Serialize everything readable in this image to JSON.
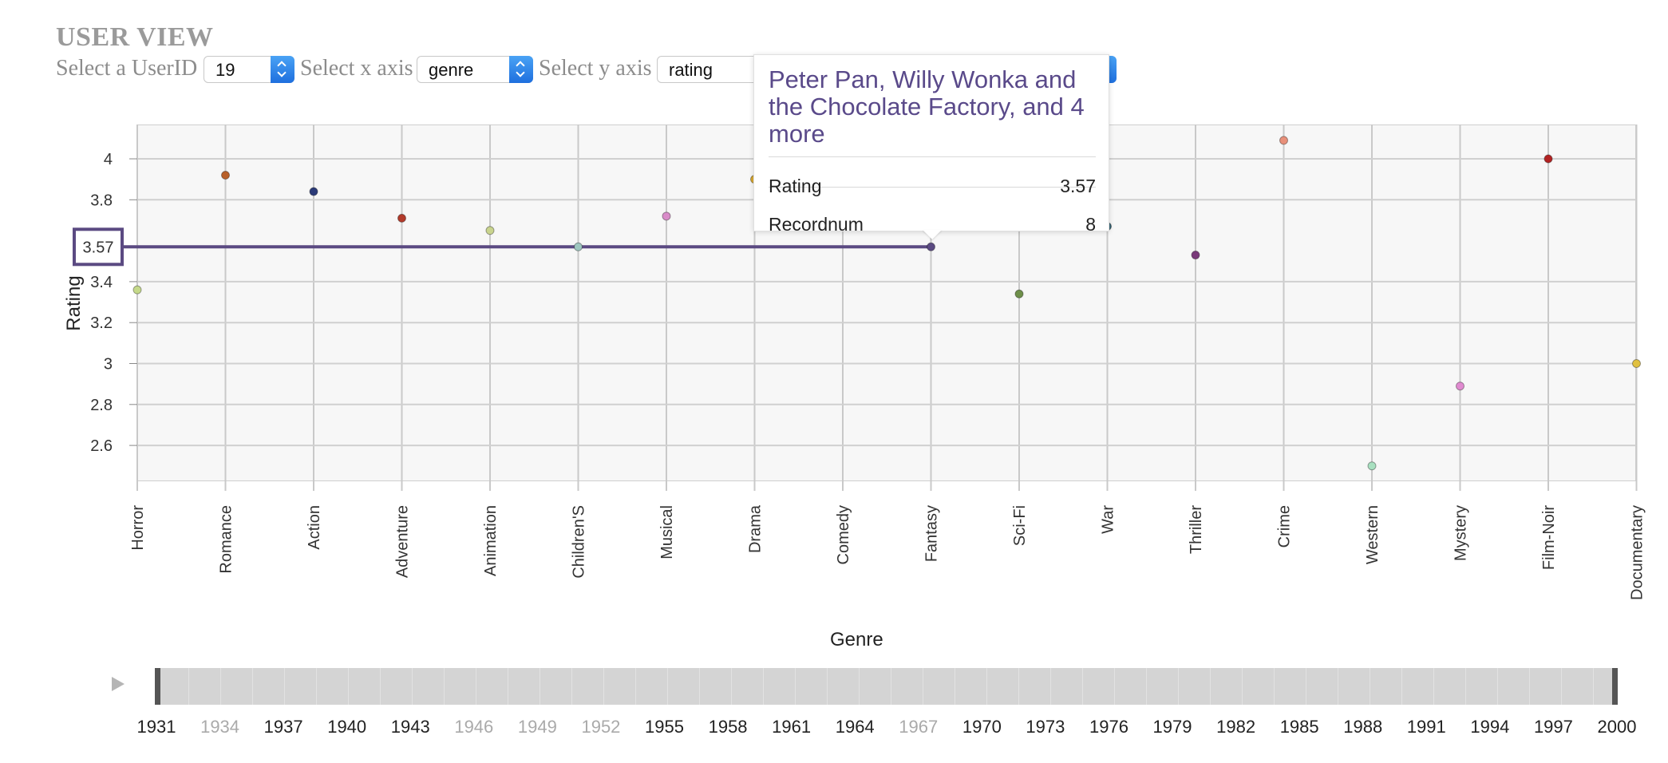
{
  "header": {
    "title": "USER VIEW"
  },
  "controls": {
    "userid_label": "Select a UserID",
    "userid_value": "19",
    "x_label": "Select x axis",
    "x_value": "genre",
    "y_label": "Select y axis",
    "y_value": "rating"
  },
  "tooltip": {
    "title": "Peter Pan, Willy Wonka and the Chocolate Factory, and 4 more",
    "rows": [
      {
        "key": "Recordnum",
        "value": "8"
      },
      {
        "key": "Rating",
        "value": "3.57"
      }
    ]
  },
  "highlight": {
    "value": "3.57",
    "category": "Fantasy",
    "color": "#5b4a82"
  },
  "chart_data": {
    "type": "scatter",
    "title": "",
    "xlabel": "Genre",
    "ylabel": "Rating",
    "ylim": [
      2.42,
      4.17
    ],
    "yticks": [
      2.6,
      2.8,
      3,
      3.2,
      3.4,
      3.57,
      3.8,
      4
    ],
    "grid": true,
    "categories": [
      "Horror",
      "Romance",
      "Action",
      "Adventure",
      "Animation",
      "Children'S",
      "Musical",
      "Drama",
      "Comedy",
      "Fantasy",
      "Sci-Fi",
      "War",
      "Thriller",
      "Crime",
      "Western",
      "Mystery",
      "Film-Noir",
      "Documentary"
    ],
    "points": [
      {
        "category": "Horror",
        "value": 3.36,
        "color": "#c5d98a"
      },
      {
        "category": "Romance",
        "value": 3.92,
        "color": "#b8602a"
      },
      {
        "category": "Action",
        "value": 3.84,
        "color": "#2b3a78"
      },
      {
        "category": "Adventure",
        "value": 3.71,
        "color": "#b23a2a"
      },
      {
        "category": "Animation",
        "value": 3.65,
        "color": "#c9d48e"
      },
      {
        "category": "Children'S",
        "value": 3.57,
        "color": "#9fc7c0"
      },
      {
        "category": "Musical",
        "value": 3.72,
        "color": "#d98cc9"
      },
      {
        "category": "Drama",
        "value": 3.9,
        "color": "#d9a830"
      },
      {
        "category": "Fantasy",
        "value": 3.57,
        "color": "#5b4a82"
      },
      {
        "category": "Sci-Fi",
        "value": 3.34,
        "color": "#6e8f4a"
      },
      {
        "category": "War",
        "value": 3.67,
        "color": "#3a6a7a"
      },
      {
        "category": "Thriller",
        "value": 3.53,
        "color": "#7a3a7a"
      },
      {
        "category": "Crime",
        "value": 4.09,
        "color": "#e8907a"
      },
      {
        "category": "Western",
        "value": 2.5,
        "color": "#a8e0c0"
      },
      {
        "category": "Mystery",
        "value": 2.89,
        "color": "#e08ad0"
      },
      {
        "category": "Film-Noir",
        "value": 4.0,
        "color": "#b22222"
      },
      {
        "category": "Documentary",
        "value": 3.0,
        "color": "#e0c040"
      }
    ]
  },
  "timeline": {
    "years": [
      "1931",
      "1934",
      "1937",
      "1940",
      "1943",
      "1946",
      "1949",
      "1952",
      "1955",
      "1958",
      "1961",
      "1964",
      "1967",
      "1970",
      "1973",
      "1976",
      "1979",
      "1982",
      "1985",
      "1988",
      "1991",
      "1994",
      "1997",
      "2000"
    ],
    "dimmed": [
      "1934",
      "1946",
      "1949",
      "1952",
      "1967"
    ],
    "range": [
      1931,
      2000
    ]
  }
}
